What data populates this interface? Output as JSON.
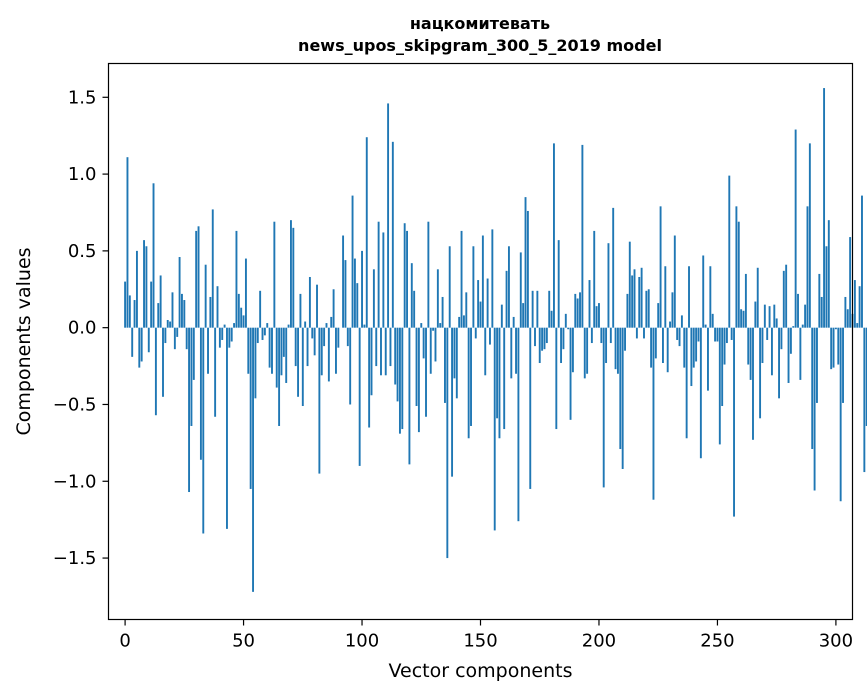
{
  "chart_data": {
    "type": "bar",
    "title": [
      "нацкомитевать",
      "news_upos_skipgram_300_5_2019 model"
    ],
    "xlabel": "Vector components",
    "ylabel": "Components values",
    "xlim": [
      -7,
      307
    ],
    "ylim": [
      -1.9,
      1.72
    ],
    "xticks": [
      0,
      50,
      100,
      150,
      200,
      250,
      300
    ],
    "yticks": [
      -1.5,
      -1.0,
      -0.5,
      0.0,
      0.5,
      1.0,
      1.5
    ],
    "ytick_labels": [
      "−1.5",
      "−1.0",
      "−0.5",
      "0.0",
      "0.5",
      "1.0",
      "1.5"
    ],
    "bar_color": "#1f77b4",
    "x_start": 0,
    "values": [
      0.3,
      1.11,
      0.21,
      -0.19,
      0.18,
      0.5,
      -0.26,
      -0.22,
      0.57,
      0.53,
      -0.16,
      0.3,
      0.94,
      -0.57,
      0.16,
      0.34,
      -0.45,
      -0.1,
      0.05,
      0.04,
      0.23,
      -0.14,
      -0.06,
      0.46,
      0.22,
      0.18,
      -0.14,
      -1.07,
      -0.64,
      -0.34,
      0.63,
      0.66,
      -0.86,
      -1.34,
      0.41,
      -0.3,
      0.2,
      0.77,
      -0.58,
      0.27,
      -0.13,
      -0.08,
      0.02,
      -1.31,
      -0.13,
      -0.09,
      0.03,
      0.63,
      0.22,
      0.13,
      0.08,
      0.45,
      -0.3,
      -1.05,
      -1.72,
      -0.46,
      -0.1,
      0.24,
      -0.08,
      -0.05,
      0.03,
      -0.26,
      -0.3,
      0.69,
      -0.39,
      -0.64,
      -0.31,
      -0.19,
      -0.36,
      0.02,
      0.7,
      0.65,
      -0.25,
      -0.45,
      0.22,
      -0.51,
      0.04,
      -0.25,
      0.33,
      -0.07,
      -0.18,
      0.28,
      -0.95,
      -0.31,
      -0.12,
      0.03,
      -0.35,
      0.07,
      0.25,
      -0.3,
      -0.13,
      0.0,
      0.6,
      0.44,
      -0.12,
      -0.5,
      0.86,
      0.45,
      0.29,
      -0.9,
      0.5,
      0.02,
      1.24,
      -0.65,
      -0.44,
      0.38,
      -0.25,
      0.69,
      -0.31,
      0.62,
      -0.31,
      1.46,
      -0.25,
      1.21,
      -0.37,
      -0.48,
      -0.69,
      -0.66,
      0.68,
      0.63,
      -0.89,
      0.42,
      0.24,
      -0.51,
      -0.68,
      0.03,
      -0.2,
      -0.58,
      0.69,
      -0.3,
      -0.02,
      -0.22,
      0.38,
      0.03,
      0.2,
      -0.49,
      -1.5,
      0.53,
      -0.97,
      -0.33,
      -0.46,
      0.07,
      0.63,
      0.08,
      0.23,
      -0.72,
      -0.64,
      0.53,
      -0.07,
      0.31,
      0.17,
      0.6,
      -0.31,
      0.32,
      -0.11,
      0.64,
      -1.32,
      -0.59,
      -0.72,
      0.15,
      -0.66,
      0.37,
      0.53,
      -0.33,
      0.07,
      -0.3,
      -1.26,
      0.49,
      0.16,
      0.85,
      0.76,
      -1.05,
      0.24,
      -0.12,
      0.24,
      -0.23,
      -0.15,
      -0.14,
      -0.1,
      0.24,
      0.11,
      1.2,
      -0.66,
      0.57,
      -0.23,
      -0.14,
      0.09,
      -0.01,
      -0.6,
      -0.29,
      0.22,
      0.19,
      0.23,
      1.19,
      -0.33,
      -0.3,
      0.31,
      -0.1,
      0.63,
      0.14,
      0.16,
      -0.1,
      -1.04,
      -0.23,
      0.55,
      -0.1,
      0.78,
      -0.27,
      -0.3,
      -0.79,
      -0.92,
      -0.15,
      0.22,
      0.56,
      0.34,
      0.38,
      -0.07,
      0.33,
      0.39,
      -0.07,
      0.24,
      0.25,
      -0.26,
      -1.12,
      -0.2,
      0.16,
      0.79,
      -0.23,
      0.4,
      -0.29,
      0.04,
      0.23,
      0.6,
      -0.08,
      -0.12,
      0.08,
      -0.26,
      -0.72,
      0.4,
      -0.38,
      -0.26,
      -0.22,
      -0.09,
      -0.85,
      0.47,
      0.02,
      -0.41,
      0.4,
      0.09,
      -0.09,
      -0.09,
      -0.76,
      -0.51,
      -0.24,
      -0.1,
      0.99,
      -0.08,
      -1.23,
      0.79,
      0.69,
      0.12,
      0.11,
      0.35,
      -0.24,
      -0.34,
      -0.73,
      0.17,
      0.39,
      -0.59,
      -0.23,
      0.15,
      -0.08,
      0.14,
      -0.31,
      0.15,
      0.06,
      -0.46,
      -0.14,
      0.37,
      0.41,
      -0.36,
      -0.17,
      0.01,
      1.29,
      0.22,
      -0.34,
      0.02,
      0.15,
      0.79,
      1.2,
      -0.79,
      -1.06,
      -0.49,
      0.35,
      0.2,
      1.56,
      0.53,
      0.7,
      -0.27,
      -0.26,
      -0.01,
      -0.24,
      -1.13,
      -0.49,
      0.2,
      0.12,
      0.59,
      0.09,
      0.31,
      0.03,
      0.27,
      0.86,
      -0.94,
      -0.64,
      -0.72,
      0.04,
      0.0
    ]
  }
}
